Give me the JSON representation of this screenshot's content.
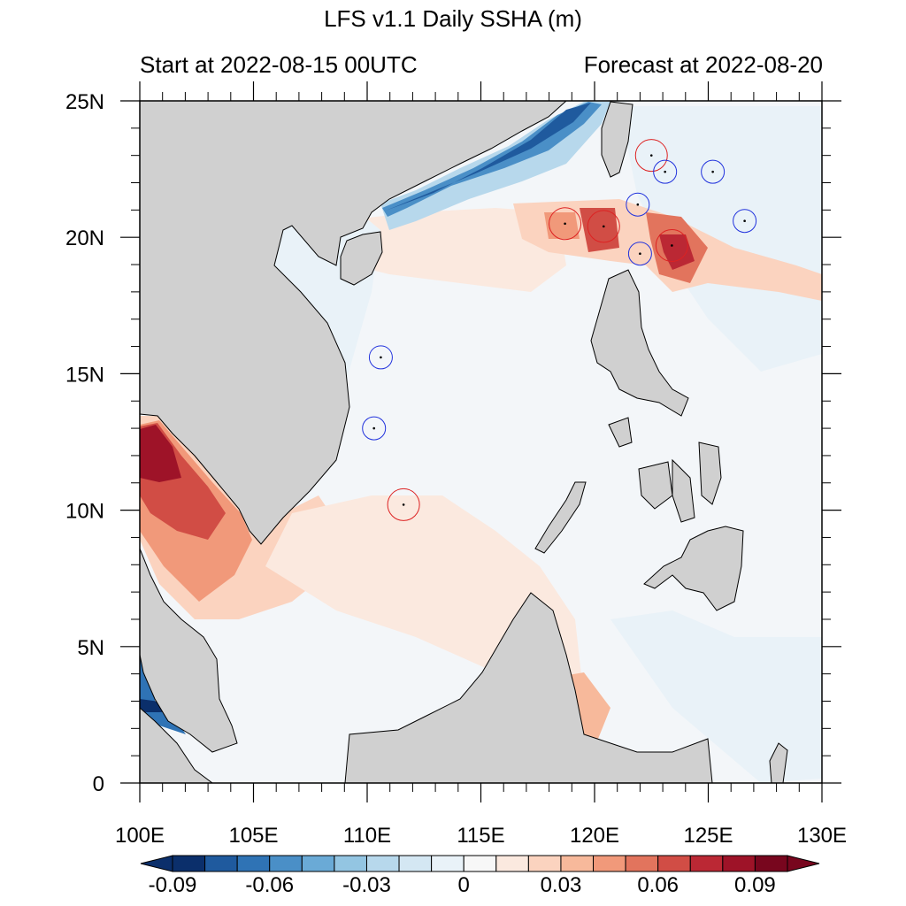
{
  "header": {
    "title": "LFS v1.1 Daily SSHA (m)",
    "start_label": "Start at 2022-08-15 00UTC",
    "forecast_label": "Forecast at 2022-08-20"
  },
  "map": {
    "lon_range": [
      100,
      130
    ],
    "lat_range": [
      0,
      25
    ],
    "lon_ticks": [
      {
        "value": 100,
        "label": "100E"
      },
      {
        "value": 105,
        "label": "105E"
      },
      {
        "value": 110,
        "label": "110E"
      },
      {
        "value": 115,
        "label": "115E"
      },
      {
        "value": 120,
        "label": "120E"
      },
      {
        "value": 125,
        "label": "125E"
      },
      {
        "value": 130,
        "label": "130E"
      }
    ],
    "lat_ticks": [
      {
        "value": 0,
        "label": "0"
      },
      {
        "value": 5,
        "label": "5N"
      },
      {
        "value": 10,
        "label": "10N"
      },
      {
        "value": 15,
        "label": "15N"
      },
      {
        "value": 20,
        "label": "20N"
      },
      {
        "value": 25,
        "label": "25N"
      }
    ],
    "land_color": "#d0d0d0",
    "eddies": [
      {
        "type": "anticyclonic",
        "lon": 122.5,
        "lat": 23.0
      },
      {
        "type": "cyclonic",
        "lon": 123.1,
        "lat": 22.4
      },
      {
        "type": "cyclonic",
        "lon": 125.2,
        "lat": 22.4
      },
      {
        "type": "cyclonic",
        "lon": 121.9,
        "lat": 21.2
      },
      {
        "type": "anticyclonic",
        "lon": 118.7,
        "lat": 20.5
      },
      {
        "type": "anticyclonic",
        "lon": 120.4,
        "lat": 20.4
      },
      {
        "type": "cyclonic",
        "lon": 126.6,
        "lat": 20.6
      },
      {
        "type": "cyclonic",
        "lon": 122.0,
        "lat": 19.4
      },
      {
        "type": "anticyclonic",
        "lon": 123.4,
        "lat": 19.7
      },
      {
        "type": "cyclonic",
        "lon": 110.6,
        "lat": 15.6
      },
      {
        "type": "cyclonic",
        "lon": 110.3,
        "lat": 13.0
      },
      {
        "type": "anticyclonic",
        "lon": 111.6,
        "lat": 10.2
      }
    ],
    "eddy_colors": {
      "cyclonic": "#2233dd",
      "anticyclonic": "#dd2222"
    }
  },
  "colorbar": {
    "levels": [
      -0.1,
      -0.09,
      -0.08,
      -0.07,
      -0.06,
      -0.05,
      -0.04,
      -0.03,
      -0.02,
      -0.01,
      0,
      0.01,
      0.02,
      0.03,
      0.04,
      0.05,
      0.06,
      0.07,
      0.08,
      0.09,
      0.1
    ],
    "colors": [
      "#0b2f6b",
      "#1f5a9e",
      "#2f73b5",
      "#4a8fc7",
      "#6aaad6",
      "#93c5e2",
      "#b7d8ec",
      "#d4e7f3",
      "#e9f2f8",
      "#f7f7f7",
      "#fbe9df",
      "#fbd3bf",
      "#f7b99b",
      "#f1997a",
      "#e2745d",
      "#d14d45",
      "#bb2834",
      "#9e1328",
      "#78061e"
    ],
    "tick_values": [
      -0.09,
      -0.06,
      -0.03,
      0,
      0.03,
      0.06,
      0.09
    ],
    "tick_labels": [
      "-0.09",
      "-0.06",
      "-0.03",
      "0",
      "0.03",
      "0.06",
      "0.09"
    ]
  }
}
